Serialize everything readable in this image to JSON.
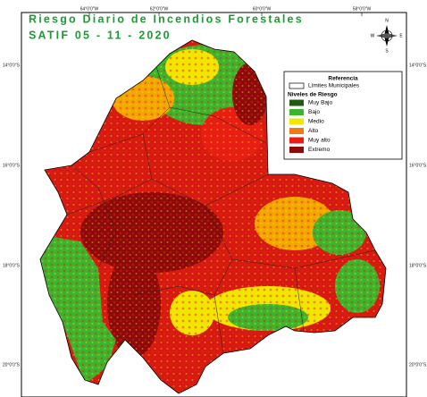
{
  "header": {
    "title": "Riesgo Diario de Incendios Forestales",
    "subtitle": "SATIF 05 - 11 - 2020"
  },
  "longitude_labels": [
    "64°0'0\"W",
    "62°0'0\"W",
    "60°0'0\"W",
    "58°0'0\"W"
  ],
  "latitude_labels": [
    "14°0'0\"S",
    "16°0'0\"S",
    "18°0'0\"S",
    "20°0'0\"S"
  ],
  "compass": {
    "n": "N",
    "s": "S",
    "e": "E",
    "w": "W"
  },
  "legend": {
    "title": "Referencia",
    "boundary": "Límites Municipales",
    "levels_title": "Niveles de Riesgo",
    "levels": [
      {
        "label": "Muy Bajo",
        "color": "#1e5c14"
      },
      {
        "label": "Bajo",
        "color": "#3cb52e"
      },
      {
        "label": "Medio",
        "color": "#f2e600"
      },
      {
        "label": "Alto",
        "color": "#f07a14"
      },
      {
        "label": "Muy alto",
        "color": "#e81e14"
      },
      {
        "label": "Extremo",
        "color": "#8c0a0a"
      }
    ]
  }
}
